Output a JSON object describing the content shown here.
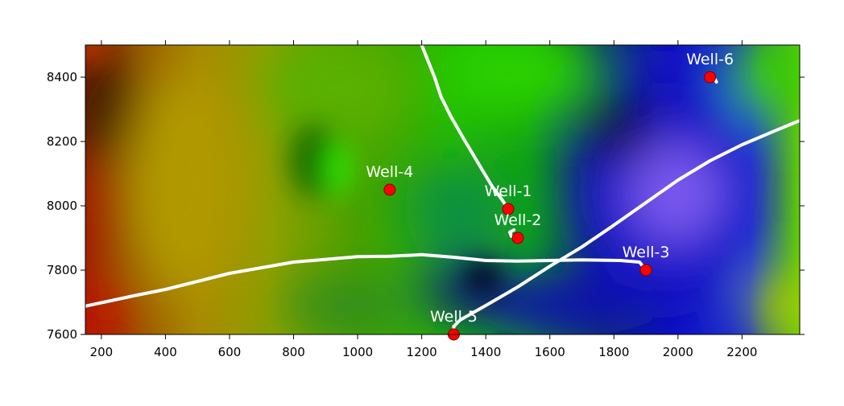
{
  "chart_data": {
    "type": "scatter",
    "title": "",
    "xlabel": "",
    "ylabel": "",
    "xlim": [
      150,
      2380
    ],
    "ylim": [
      7600,
      8500
    ],
    "x_ticks": [
      200,
      400,
      600,
      800,
      1000,
      1200,
      1400,
      1600,
      1800,
      2000,
      2200
    ],
    "y_ticks": [
      7600,
      7800,
      8000,
      8200,
      8400
    ],
    "colors": {
      "background_low": "#0000ff",
      "background_mid": "#22cc00",
      "background_high": "#cc2200",
      "marker": "#ff0000",
      "trajectory": "#ffffff"
    },
    "wells": [
      {
        "name": "Well-1",
        "x": 1470,
        "y": 7990
      },
      {
        "name": "Well-2",
        "x": 1500,
        "y": 7900
      },
      {
        "name": "Well-3",
        "x": 1900,
        "y": 7800
      },
      {
        "name": "Well-4",
        "x": 1100,
        "y": 8050
      },
      {
        "name": "Well-5",
        "x": 1300,
        "y": 7600
      },
      {
        "name": "Well-6",
        "x": 2100,
        "y": 8400
      }
    ],
    "trajectories": [
      {
        "well": "Well-1",
        "points": [
          [
            1470,
            7990
          ],
          [
            1450,
            8020
          ],
          [
            1420,
            8060
          ],
          [
            1390,
            8110
          ],
          [
            1360,
            8160
          ],
          [
            1330,
            8210
          ],
          [
            1290,
            8280
          ],
          [
            1260,
            8340
          ],
          [
            1240,
            8400
          ],
          [
            1220,
            8450
          ],
          [
            1200,
            8500
          ]
        ]
      },
      {
        "well": "Well-2",
        "points": [
          [
            1500,
            7900
          ],
          [
            1480,
            7905
          ],
          [
            1475,
            7918
          ],
          [
            1488,
            7925
          ]
        ]
      },
      {
        "well": "Well-3",
        "points": [
          [
            1900,
            7800
          ],
          [
            1880,
            7825
          ],
          [
            1820,
            7830
          ],
          [
            1700,
            7832
          ],
          [
            1600,
            7830
          ],
          [
            1500,
            7828
          ],
          [
            1400,
            7830
          ],
          [
            1300,
            7840
          ],
          [
            1200,
            7848
          ],
          [
            1100,
            7843
          ],
          [
            1000,
            7842
          ],
          [
            800,
            7825
          ],
          [
            600,
            7790
          ],
          [
            400,
            7740
          ],
          [
            300,
            7720
          ],
          [
            150,
            7688
          ]
        ]
      },
      {
        "well": "Well-5",
        "points": [
          [
            1300,
            7600
          ],
          [
            1300,
            7625
          ],
          [
            1320,
            7645
          ],
          [
            1400,
            7690
          ],
          [
            1500,
            7748
          ],
          [
            1600,
            7812
          ],
          [
            1700,
            7872
          ],
          [
            1800,
            7940
          ],
          [
            1900,
            8010
          ],
          [
            2000,
            8080
          ],
          [
            2100,
            8140
          ],
          [
            2200,
            8190
          ],
          [
            2300,
            8232
          ],
          [
            2380,
            8265
          ]
        ]
      },
      {
        "well": "Well-6",
        "points": [
          [
            2100,
            8400
          ],
          [
            2115,
            8395
          ],
          [
            2120,
            8385
          ],
          [
            2105,
            8410
          ]
        ]
      }
    ]
  }
}
